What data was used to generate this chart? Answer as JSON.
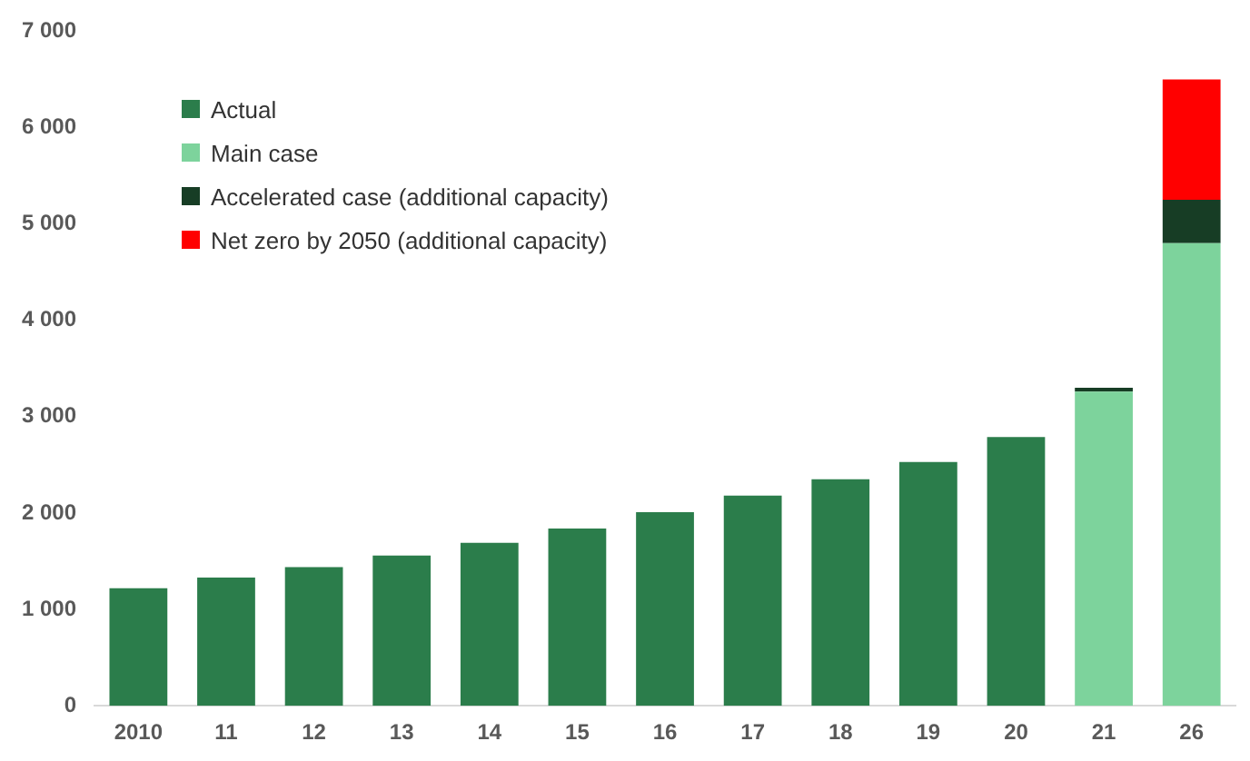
{
  "chart_data": {
    "type": "bar",
    "stacked": true,
    "categories": [
      "2010",
      "11",
      "12",
      "13",
      "14",
      "15",
      "16",
      "17",
      "18",
      "19",
      "20",
      "21",
      "26"
    ],
    "series": [
      {
        "name": "Actual",
        "color": "#2b7d4b",
        "values": [
          1220,
          1330,
          1440,
          1560,
          1690,
          1840,
          2010,
          2180,
          2350,
          2530,
          2790,
          null,
          null
        ]
      },
      {
        "name": "Main case",
        "color": "#7dd39c",
        "values": [
          null,
          null,
          null,
          null,
          null,
          null,
          null,
          null,
          null,
          null,
          null,
          3260,
          4800
        ]
      },
      {
        "name": "Accelerated case (additional capacity)",
        "color": "#173d25",
        "values": [
          null,
          null,
          null,
          null,
          null,
          null,
          null,
          null,
          null,
          null,
          null,
          40,
          450
        ]
      },
      {
        "name": "Net zero by 2050 (additional capacity)",
        "color": "#ff0000",
        "values": [
          null,
          null,
          null,
          null,
          null,
          null,
          null,
          null,
          null,
          null,
          null,
          null,
          1250
        ]
      }
    ],
    "ylim": [
      0,
      7000
    ],
    "yticks": [
      {
        "value": 0,
        "label": "0"
      },
      {
        "value": 1000,
        "label": "1 000"
      },
      {
        "value": 2000,
        "label": "2 000"
      },
      {
        "value": 3000,
        "label": "3 000"
      },
      {
        "value": 4000,
        "label": "4 000"
      },
      {
        "value": 5000,
        "label": "5 000"
      },
      {
        "value": 6000,
        "label": "6 000"
      },
      {
        "value": 7000,
        "label": "7 000"
      }
    ],
    "grid": false,
    "legend": "top left"
  }
}
